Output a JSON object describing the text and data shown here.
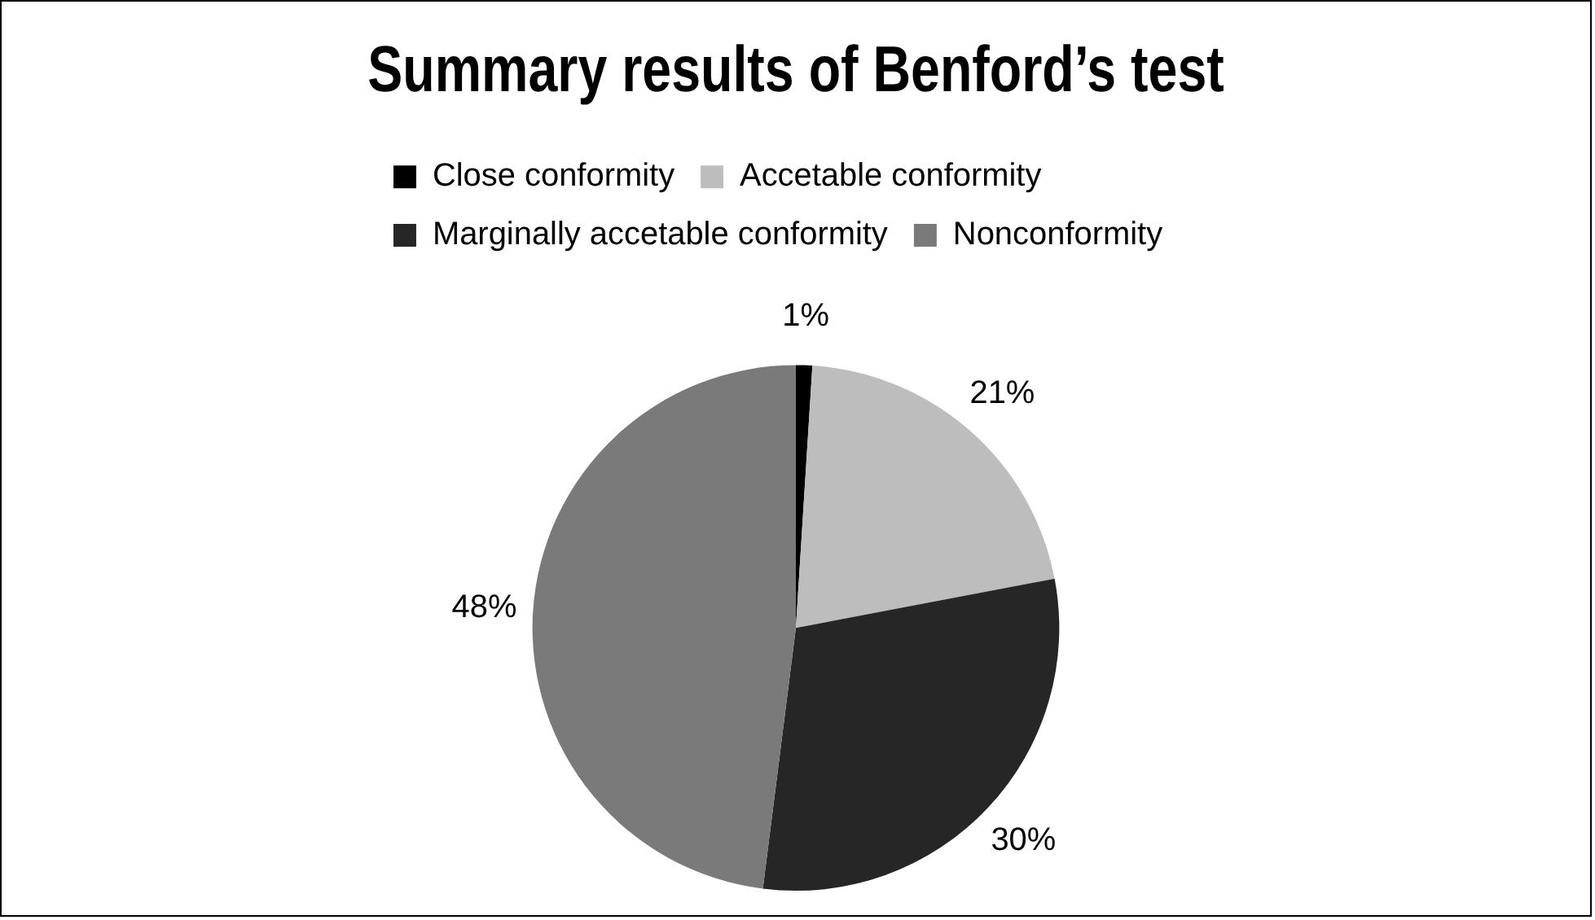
{
  "chart_data": {
    "type": "pie",
    "title": "Summary results of Benford’s test",
    "categories": [
      "Close conformity",
      "Accetable conformity",
      "Marginally accetable conformity",
      "Nonconformity"
    ],
    "values": [
      1,
      21,
      30,
      48
    ],
    "colors": [
      "#000000",
      "#bdbdbd",
      "#262626",
      "#7a7a7a"
    ],
    "value_labels": [
      "1%",
      "21%",
      "30%",
      "48%"
    ],
    "legend": "top"
  }
}
